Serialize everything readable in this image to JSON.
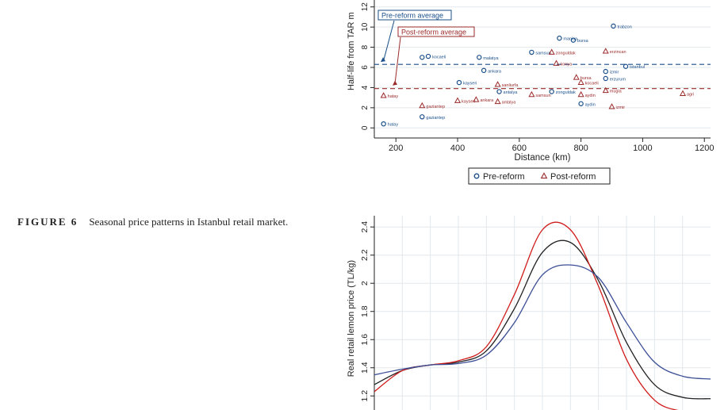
{
  "caption": {
    "label": "FIGURE 6",
    "text": "Seasonal price patterns in Istanbul retail market."
  },
  "chart_data": [
    {
      "type": "scatter",
      "title": "",
      "xlabel": "Distance (km)",
      "ylabel": "Half-life from TAR m",
      "xlim": [
        130,
        1220
      ],
      "ylim": [
        -1,
        13
      ],
      "xticks": [
        200,
        400,
        600,
        800,
        1000,
        1200
      ],
      "yticks": [
        0,
        2,
        4,
        6,
        8,
        10,
        12
      ],
      "grid": true,
      "legend_position": "bottom",
      "reference_lines": [
        {
          "label": "Pre-reform average",
          "y": 6.3,
          "color": "#1a4f8a"
        },
        {
          "label": "Post-reform average",
          "y": 3.9,
          "color": "#9b2a2a"
        }
      ],
      "series": [
        {
          "name": "Pre-reform",
          "marker": "circle",
          "color": "#1a4f8a",
          "points": [
            {
              "x": 160,
              "y": 0.4,
              "label": "hatay"
            },
            {
              "x": 285,
              "y": 1.1,
              "label": "gaziantep"
            },
            {
              "x": 285,
              "y": 7.0,
              "label": ""
            },
            {
              "x": 305,
              "y": 7.1,
              "label": "kocaeli"
            },
            {
              "x": 405,
              "y": 4.5,
              "label": "kayseri"
            },
            {
              "x": 470,
              "y": 7.0,
              "label": "malatya"
            },
            {
              "x": 485,
              "y": 5.7,
              "label": "ankara"
            },
            {
              "x": 535,
              "y": 3.6,
              "label": "antalya"
            },
            {
              "x": 640,
              "y": 7.5,
              "label": "samsun"
            },
            {
              "x": 705,
              "y": 3.6,
              "label": "zonguldak"
            },
            {
              "x": 730,
              "y": 8.9,
              "label": "manisa"
            },
            {
              "x": 775,
              "y": 8.7,
              "label": "bursa"
            },
            {
              "x": 800,
              "y": 2.4,
              "label": "aydin"
            },
            {
              "x": 880,
              "y": 5.6,
              "label": "izmir"
            },
            {
              "x": 880,
              "y": 4.9,
              "label": "erzurum"
            },
            {
              "x": 905,
              "y": 10.1,
              "label": "trabzon"
            },
            {
              "x": 945,
              "y": 6.1,
              "label": "istanbul"
            }
          ]
        },
        {
          "name": "Post-reform",
          "marker": "triangle",
          "color": "#9b2a2a",
          "points": [
            {
              "x": 160,
              "y": 3.2,
              "label": "hatay"
            },
            {
              "x": 285,
              "y": 2.2,
              "label": "gaziantep"
            },
            {
              "x": 400,
              "y": 2.7,
              "label": "kayseri"
            },
            {
              "x": 460,
              "y": 2.8,
              "label": "ankara"
            },
            {
              "x": 530,
              "y": 4.3,
              "label": "sanliurfa"
            },
            {
              "x": 530,
              "y": 2.6,
              "label": "antalya"
            },
            {
              "x": 640,
              "y": 3.3,
              "label": "samsun"
            },
            {
              "x": 705,
              "y": 7.5,
              "label": "zonguldak"
            },
            {
              "x": 720,
              "y": 6.4,
              "label": "konya"
            },
            {
              "x": 785,
              "y": 5.0,
              "label": "bursa"
            },
            {
              "x": 800,
              "y": 3.3,
              "label": "aydin"
            },
            {
              "x": 800,
              "y": 4.5,
              "label": "kocaeli"
            },
            {
              "x": 880,
              "y": 7.6,
              "label": "erzincan"
            },
            {
              "x": 880,
              "y": 3.7,
              "label": "mugla"
            },
            {
              "x": 900,
              "y": 2.1,
              "label": "izmir"
            },
            {
              "x": 1130,
              "y": 3.4,
              "label": "agri"
            }
          ]
        }
      ]
    },
    {
      "type": "line",
      "title": "",
      "xlabel": "",
      "ylabel": "Real retail lemon price (TL/kg)",
      "xlim": [
        0,
        12
      ],
      "ylim": [
        1.1,
        2.48
      ],
      "yticks": [
        1.2,
        1.4,
        1.6,
        1.8,
        2,
        2.2,
        2.4
      ],
      "ytick_labels": [
        "1.2",
        "1.4",
        "1.6",
        "1.8",
        "2",
        "2.2",
        "2.4"
      ],
      "grid": true,
      "x": [
        0,
        1,
        2,
        3,
        4,
        5,
        6,
        7,
        8,
        9,
        10,
        11,
        12
      ],
      "series": [
        {
          "color": "#222222",
          "values": [
            1.28,
            1.38,
            1.42,
            1.44,
            1.52,
            1.82,
            2.22,
            2.29,
            2.02,
            1.58,
            1.28,
            1.19,
            1.18
          ]
        },
        {
          "color": "#d01c1c",
          "values": [
            1.23,
            1.38,
            1.42,
            1.45,
            1.55,
            1.92,
            2.38,
            2.38,
            1.98,
            1.46,
            1.17,
            1.09,
            1.07
          ]
        },
        {
          "color": "#3b4e96",
          "values": [
            1.35,
            1.39,
            1.42,
            1.43,
            1.49,
            1.72,
            2.06,
            2.13,
            2.04,
            1.72,
            1.44,
            1.34,
            1.32
          ]
        }
      ]
    }
  ]
}
